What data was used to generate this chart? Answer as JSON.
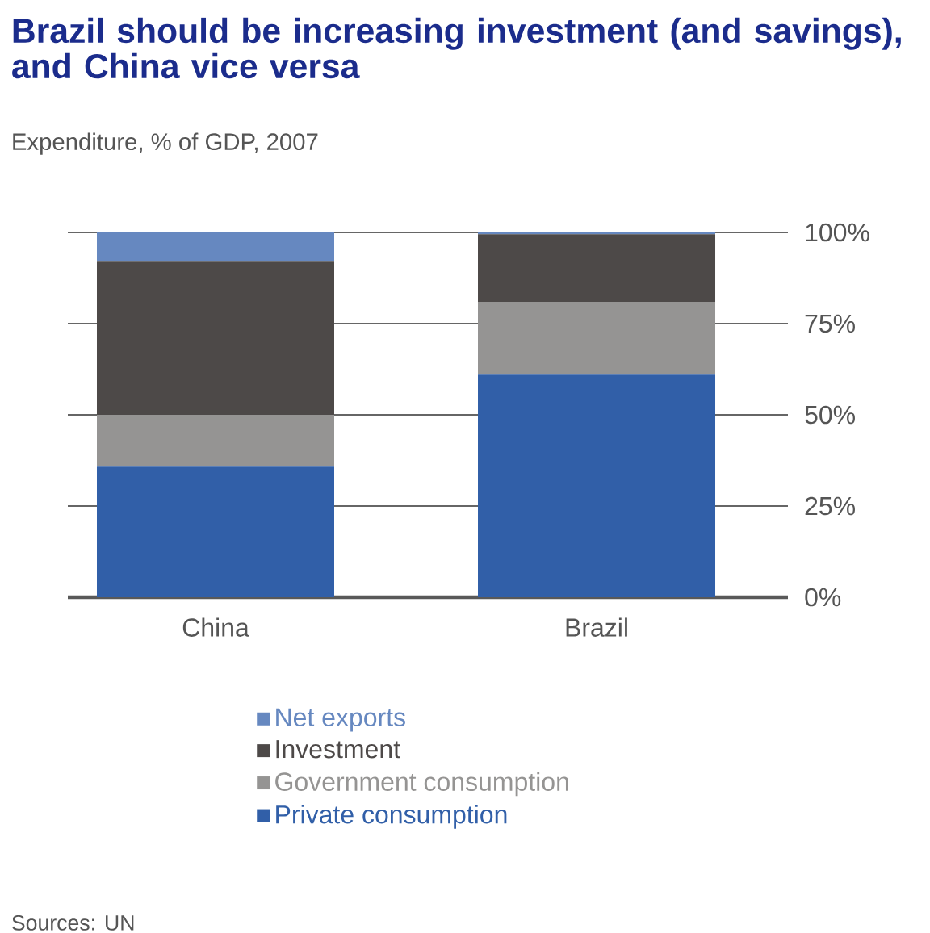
{
  "chart_data": {
    "type": "bar",
    "stacked": true,
    "title": "Brazil should be increasing investment (and savings), and China vice versa",
    "subtitle": "Expenditure, % of GDP, 2007",
    "categories": [
      "China",
      "Brazil"
    ],
    "series": [
      {
        "name": "Private consumption",
        "color": "#315fa8",
        "values": [
          36,
          61
        ]
      },
      {
        "name": "Government consumption",
        "color": "#959493",
        "values": [
          14,
          20
        ]
      },
      {
        "name": "Investment",
        "color": "#4d4948",
        "values": [
          42,
          18.5
        ]
      },
      {
        "name": "Net exports",
        "color": "#6688c0",
        "values": [
          8,
          0.5
        ]
      }
    ],
    "ylim": [
      0,
      100
    ],
    "yticks": [
      {
        "value": 0,
        "label": "0%"
      },
      {
        "value": 25,
        "label": "25%"
      },
      {
        "value": 50,
        "label": "50%"
      },
      {
        "value": 75,
        "label": "75%"
      },
      {
        "value": 100,
        "label": "100%"
      }
    ],
    "grid": "y",
    "legend": "bottom",
    "annotations": [
      "Sources: UN"
    ]
  }
}
